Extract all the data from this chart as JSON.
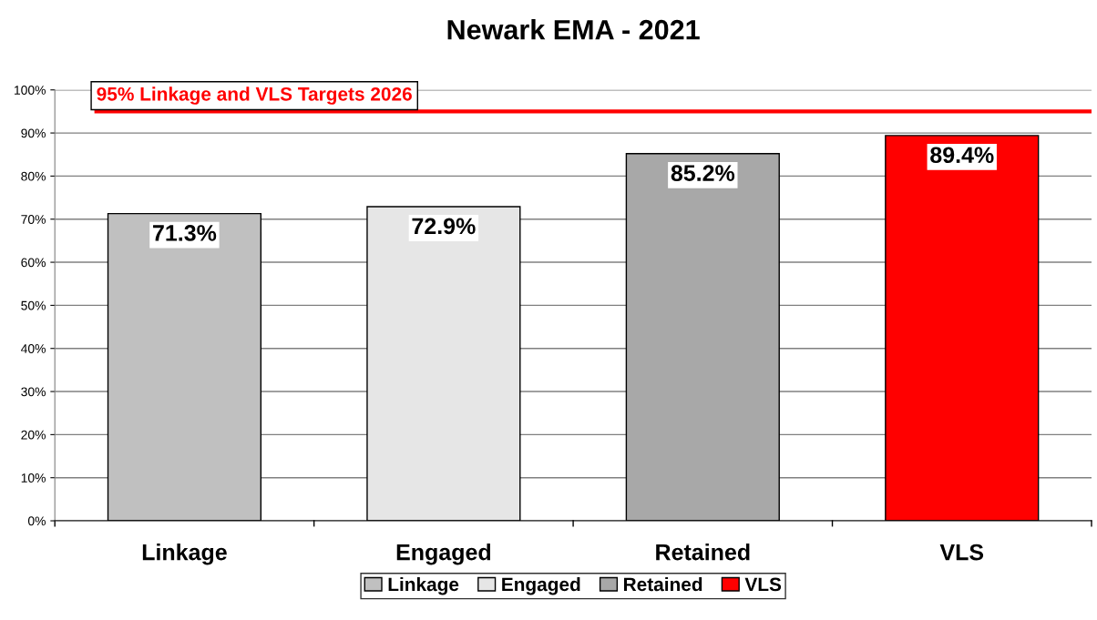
{
  "chart_data": {
    "type": "bar",
    "title": "Newark EMA - 2021",
    "categories": [
      "Linkage",
      "Engaged",
      "Retained",
      "VLS"
    ],
    "series": [
      {
        "name": "Linkage",
        "color": "#c0c0c0",
        "values": [
          71.3,
          null,
          null,
          null
        ],
        "value_labels": [
          "71.3%",
          null,
          null,
          null
        ]
      },
      {
        "name": "Engaged",
        "color": "#e6e6e6",
        "values": [
          null,
          72.9,
          null,
          null
        ],
        "value_labels": [
          null,
          "72.9%",
          null,
          null
        ]
      },
      {
        "name": "Retained",
        "color": "#a8a8a8",
        "values": [
          null,
          null,
          85.2,
          null
        ],
        "value_labels": [
          null,
          null,
          "85.2%",
          null
        ]
      },
      {
        "name": "VLS",
        "color": "#ff0000",
        "values": [
          null,
          null,
          null,
          89.4
        ],
        "value_labels": [
          null,
          null,
          null,
          "89.4%"
        ]
      }
    ],
    "ylim": [
      0,
      100
    ],
    "yticks": [
      {
        "value": 0,
        "label": "0%"
      },
      {
        "value": 10,
        "label": "10%"
      },
      {
        "value": 20,
        "label": "20%"
      },
      {
        "value": 30,
        "label": "30%"
      },
      {
        "value": 40,
        "label": "40%"
      },
      {
        "value": 50,
        "label": "50%"
      },
      {
        "value": 60,
        "label": "60%"
      },
      {
        "value": 70,
        "label": "70%"
      },
      {
        "value": 80,
        "label": "80%"
      },
      {
        "value": 90,
        "label": "90%"
      },
      {
        "value": 100,
        "label": "100%"
      }
    ],
    "ref_lines": [
      {
        "axis": "y",
        "value": 95,
        "label": "95% Linkage and VLS Targets 2026",
        "color": "#ff0000"
      }
    ],
    "grid": "y",
    "legend": "bottom"
  }
}
